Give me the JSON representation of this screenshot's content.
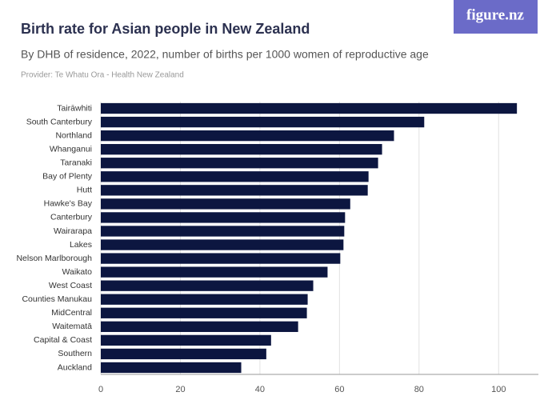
{
  "logo": "figure.nz",
  "chart_data": {
    "type": "bar",
    "orientation": "horizontal",
    "title": "Birth rate for Asian people in New Zealand",
    "subtitle": "By DHB of residence, 2022, number of births per 1000 women of reproductive age",
    "provider": "Provider: Te Whatu Ora - Health New Zealand",
    "categories": [
      "Tairāwhiti",
      "South Canterbury",
      "Northland",
      "Whanganui",
      "Taranaki",
      "Bay of Plenty",
      "Hutt",
      "Hawke's Bay",
      "Canterbury",
      "Wairarapa",
      "Lakes",
      "Nelson Marlborough",
      "Waikato",
      "West Coast",
      "Counties Manukau",
      "MidCentral",
      "Waitematā",
      "Capital & Coast",
      "Southern",
      "Auckland"
    ],
    "values": [
      104.6,
      81.3,
      73.7,
      70.7,
      69.7,
      67.3,
      67.1,
      62.7,
      61.4,
      61.2,
      61.0,
      60.2,
      57.0,
      53.4,
      52.0,
      51.8,
      49.6,
      42.8,
      41.6,
      35.3
    ],
    "color": "#0c1640",
    "xlim": [
      0,
      110
    ],
    "xticks": [
      0,
      20,
      40,
      60,
      80,
      100
    ],
    "grid": true
  }
}
